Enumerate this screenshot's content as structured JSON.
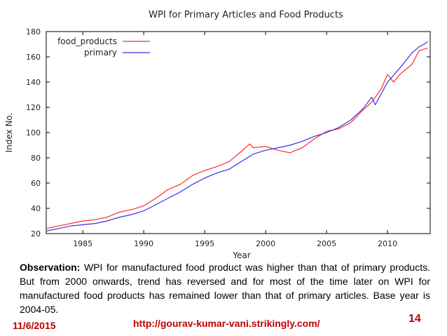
{
  "chart_data": {
    "type": "line",
    "title": "WPI for Primary Articles and Food Products",
    "xlabel": "Year",
    "ylabel": "Index No.",
    "xlim": [
      1982,
      2013.5
    ],
    "ylim": [
      20,
      180
    ],
    "x_ticks": [
      1985,
      1990,
      1995,
      2000,
      2005,
      2010
    ],
    "y_ticks": [
      20,
      40,
      60,
      80,
      100,
      120,
      140,
      160,
      180
    ],
    "legend_position": "top-left",
    "grid": false,
    "series": [
      {
        "name": "food_products",
        "color": "#ff2a2a",
        "x": [
          1982,
          1983,
          1984,
          1985,
          1986,
          1987,
          1988,
          1989,
          1990,
          1991,
          1992,
          1993,
          1994,
          1995,
          1996,
          1997,
          1998,
          1998.7,
          1999,
          2000,
          2001,
          2002,
          2003,
          2004,
          2005,
          2006,
          2007,
          2008,
          2008.7,
          2009,
          2009.5,
          2010,
          2010.5,
          2011,
          2012,
          2012.6,
          2013,
          2013.3
        ],
        "y": [
          24,
          26,
          28,
          30,
          31,
          33,
          37,
          39,
          42,
          48,
          55,
          59,
          66,
          70,
          73,
          77,
          85,
          91,
          88,
          89,
          86,
          84,
          88,
          95,
          101,
          103,
          108,
          118,
          124,
          128,
          135,
          146,
          140,
          146,
          154,
          165,
          166,
          167
        ]
      },
      {
        "name": "primary",
        "color": "#3333ee",
        "x": [
          1982,
          1983,
          1984,
          1985,
          1986,
          1987,
          1988,
          1989,
          1990,
          1991,
          1992,
          1993,
          1994,
          1995,
          1996,
          1997,
          1998,
          1999,
          2000,
          2001,
          2002,
          2003,
          2004,
          2005,
          2006,
          2007,
          2008,
          2008.7,
          2009,
          2010,
          2011,
          2012,
          2012.6,
          2013,
          2013.3
        ],
        "y": [
          22,
          24,
          26,
          27,
          28,
          30,
          33,
          35,
          38,
          43,
          48,
          53,
          59,
          64,
          68,
          71,
          77,
          83,
          86,
          88,
          90,
          93,
          97,
          100,
          104,
          110,
          119,
          128,
          122,
          140,
          151,
          163,
          168,
          170,
          172
        ]
      }
    ]
  },
  "observation": {
    "label": "Observation:",
    "text": " WPI for manufactured food product was higher than  that of primary products. But from 2000 onwards, trend  has reversed and for most of the time later on WPI for manufactured food products has remained lower than that of primary articles. Base year is 2004-05."
  },
  "footer": {
    "date": "11/6/2015",
    "url": "http://gourav-kumar-vani.strikingly.com/",
    "page_number": "14"
  },
  "colors": {
    "accent": "#c00000"
  }
}
